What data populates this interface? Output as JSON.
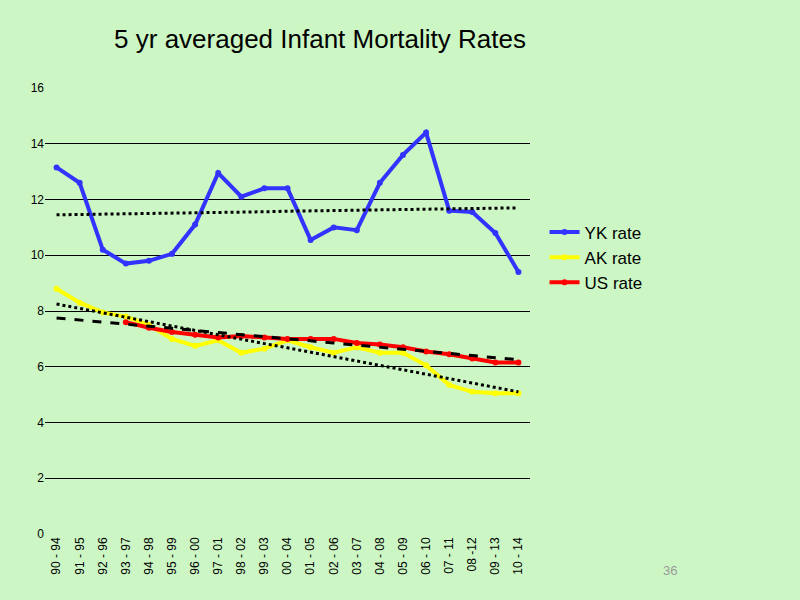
{
  "chart_data": {
    "type": "line",
    "title": "5 yr averaged Infant Mortality Rates",
    "categories": [
      "90 - 94",
      "91 - 95",
      "92 - 96",
      "93 - 97",
      "94 - 98",
      "95 - 99",
      "96 - 00",
      "97 - 01",
      "98 - 02",
      "99 - 03",
      "00 - 04",
      "01 - 05",
      "02 - 06",
      "03 - 07",
      "04 - 08",
      "05 - 09",
      "06 - 10",
      "07 - 11",
      "08 -12",
      "09 - 13",
      "10 - 14"
    ],
    "series": [
      {
        "name": "YK rate",
        "color": "#3333ff",
        "marker": "circle",
        "line_style": "solid",
        "values": [
          13.15,
          12.6,
          10.2,
          9.7,
          9.8,
          10.05,
          11.1,
          12.95,
          12.1,
          12.4,
          12.4,
          10.55,
          11.0,
          10.9,
          12.6,
          13.6,
          14.4,
          11.6,
          11.55,
          10.8,
          9.4
        ]
      },
      {
        "name": "AK rate",
        "color": "#ffff00",
        "marker": "circle",
        "line_style": "solid",
        "values": [
          8.8,
          8.3,
          7.95,
          7.8,
          7.5,
          7.0,
          6.75,
          6.95,
          6.5,
          6.65,
          6.95,
          6.7,
          6.5,
          6.7,
          6.5,
          6.5,
          6.05,
          5.35,
          5.1,
          5.05,
          5.05
        ]
      },
      {
        "name": "US rate",
        "color": "#ff0000",
        "marker": "circle",
        "line_style": "solid",
        "values": [
          null,
          null,
          null,
          7.6,
          7.4,
          7.25,
          7.15,
          7.05,
          7.1,
          7.05,
          7.0,
          7.0,
          7.0,
          6.85,
          6.8,
          6.7,
          6.55,
          6.45,
          6.3,
          6.15,
          6.15
        ]
      },
      {
        "color": "#000000",
        "marker": "none",
        "line_style": "dotted",
        "values": [
          11.45,
          11.46,
          11.48,
          11.49,
          11.5,
          11.51,
          11.53,
          11.54,
          11.55,
          11.56,
          11.58,
          11.59,
          11.6,
          11.61,
          11.63,
          11.64,
          11.65,
          11.66,
          11.68,
          11.69,
          11.7
        ]
      },
      {
        "color": "#000000",
        "marker": "none",
        "line_style": "dotted",
        "values": [
          8.25,
          8.09,
          7.94,
          7.78,
          7.62,
          7.46,
          7.31,
          7.15,
          6.99,
          6.83,
          6.68,
          6.52,
          6.36,
          6.2,
          6.05,
          5.89,
          5.73,
          5.57,
          5.42,
          5.26,
          5.1
        ]
      },
      {
        "color": "#000000",
        "marker": "none",
        "line_style": "dashed",
        "values": [
          7.75,
          7.68,
          7.6,
          7.53,
          7.45,
          7.38,
          7.3,
          7.23,
          7.15,
          7.08,
          7.0,
          6.93,
          6.85,
          6.78,
          6.7,
          6.63,
          6.55,
          6.48,
          6.4,
          6.33,
          6.25
        ]
      }
    ],
    "ylim": [
      0,
      16
    ],
    "yticks": [
      0,
      2,
      4,
      6,
      8,
      10,
      12,
      14,
      16
    ],
    "grid": true,
    "legend": "right",
    "annotations": [
      "36"
    ]
  }
}
